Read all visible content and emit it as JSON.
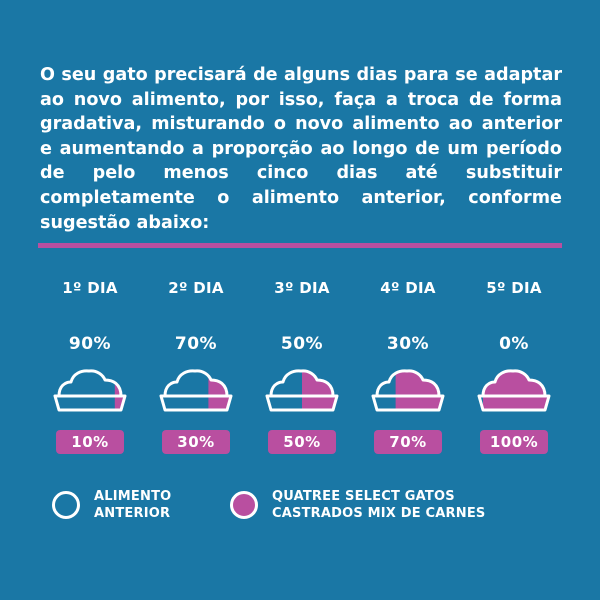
{
  "intro_text": "O seu gato precisará de alguns dias para se adaptar ao novo alimento, por isso, faça a troca de forma gradativa, misturando o novo alimento ao anterior e aumentando a proporção ao longo de um período de pelo menos cinco dias até substituir completamente o alimento anterior, conforme sugestão abaixo:",
  "colors": {
    "background": "#1a77a5",
    "previous_food": "#1a77a5",
    "new_food": "#b94fa0",
    "text": "#ffffff"
  },
  "days": [
    {
      "label": "1º DIA",
      "previous_pct": "90%",
      "new_pct": "10%",
      "new_fraction": 0.1
    },
    {
      "label": "2º DIA",
      "previous_pct": "70%",
      "new_pct": "30%",
      "new_fraction": 0.3
    },
    {
      "label": "3º DIA",
      "previous_pct": "50%",
      "new_pct": "50%",
      "new_fraction": 0.5
    },
    {
      "label": "4º DIA",
      "previous_pct": "30%",
      "new_pct": "70%",
      "new_fraction": 0.7
    },
    {
      "label": "5º DIA",
      "previous_pct": "0%",
      "new_pct": "100%",
      "new_fraction": 1.0
    }
  ],
  "legend": {
    "previous": "ALIMENTO\nANTERIOR",
    "new": "QUATREE SELECT GATOS\nCASTRADOS MIX DE CARNES"
  }
}
